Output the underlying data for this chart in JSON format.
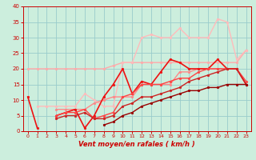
{
  "title": "",
  "xlabel": "Vent moyen/en rafales ( km/h )",
  "ylabel": "",
  "xlim": [
    -0.5,
    23.5
  ],
  "ylim": [
    0,
    40
  ],
  "xticks": [
    0,
    1,
    2,
    3,
    4,
    5,
    6,
    7,
    8,
    9,
    10,
    11,
    12,
    13,
    14,
    15,
    16,
    17,
    18,
    19,
    20,
    21,
    22,
    23
  ],
  "yticks": [
    0,
    5,
    10,
    15,
    20,
    25,
    30,
    35,
    40
  ],
  "bg_color": "#cceedd",
  "grid_color": "#99cccc",
  "lines": [
    {
      "x": [
        0,
        1,
        2,
        3,
        4,
        5,
        6,
        7,
        8,
        9,
        10,
        11,
        12,
        13,
        14,
        15,
        16,
        17,
        18,
        19,
        20,
        21,
        22,
        23
      ],
      "y": [
        20,
        20,
        20,
        20,
        20,
        20,
        20,
        20,
        20,
        21,
        22,
        22,
        22,
        22,
        22,
        22,
        22,
        22,
        22,
        22,
        22,
        22,
        22,
        26
      ],
      "color": "#ffaaaa",
      "lw": 1.0,
      "marker": "o",
      "ms": 2.0
    },
    {
      "x": [
        1,
        2,
        3,
        4,
        5,
        6,
        7,
        8,
        9,
        10,
        11,
        12,
        13,
        14,
        15,
        16,
        17,
        18,
        19,
        20,
        21,
        22,
        23
      ],
      "y": [
        8,
        8,
        8,
        8,
        8,
        12,
        10,
        8,
        8,
        22,
        22,
        30,
        31,
        30,
        30,
        33,
        30,
        30,
        30,
        36,
        35,
        23,
        26
      ],
      "color": "#ffbbbb",
      "lw": 1.0,
      "marker": "o",
      "ms": 2.0
    },
    {
      "x": [
        0,
        1,
        2,
        3,
        4,
        5,
        6,
        7,
        8,
        9,
        10,
        11,
        12,
        13,
        14,
        15,
        16,
        17,
        18,
        19,
        20,
        21,
        22,
        23
      ],
      "y": [
        null,
        null,
        null,
        7,
        7,
        7,
        7,
        9,
        10,
        11,
        11,
        11,
        15,
        15,
        15,
        15,
        19,
        19,
        20,
        20,
        20,
        20,
        20,
        15
      ],
      "color": "#ff8888",
      "lw": 1.0,
      "marker": "o",
      "ms": 2.0
    },
    {
      "x": [
        0,
        1,
        2,
        3,
        4,
        5,
        6,
        7,
        8,
        9,
        10,
        11,
        12,
        13,
        14,
        15,
        16,
        17,
        18,
        19,
        20,
        21,
        22,
        23
      ],
      "y": [
        11,
        1,
        null,
        5,
        6,
        7,
        1,
        5,
        11,
        15,
        20,
        12,
        16,
        15,
        19,
        23,
        22,
        20,
        20,
        20,
        23,
        20,
        20,
        15
      ],
      "color": "#ee1111",
      "lw": 1.2,
      "marker": "o",
      "ms": 2.0
    },
    {
      "x": [
        0,
        1,
        2,
        3,
        4,
        5,
        6,
        7,
        8,
        9,
        10,
        11,
        12,
        13,
        14,
        15,
        16,
        17,
        18,
        19,
        20,
        21,
        22,
        23
      ],
      "y": [
        null,
        null,
        null,
        5,
        6,
        6,
        7,
        4,
        5,
        6,
        11,
        12,
        15,
        15,
        15,
        16,
        17,
        17,
        19,
        20,
        20,
        20,
        20,
        16
      ],
      "color": "#ff4444",
      "lw": 1.0,
      "marker": "o",
      "ms": 2.0
    },
    {
      "x": [
        0,
        1,
        2,
        3,
        4,
        5,
        6,
        7,
        8,
        9,
        10,
        11,
        12,
        13,
        14,
        15,
        16,
        17,
        18,
        19,
        20,
        21,
        22,
        23
      ],
      "y": [
        null,
        null,
        null,
        4,
        5,
        5,
        6,
        4,
        4,
        5,
        8,
        9,
        11,
        11,
        12,
        13,
        14,
        16,
        17,
        18,
        19,
        20,
        20,
        15
      ],
      "color": "#cc2222",
      "lw": 1.0,
      "marker": "o",
      "ms": 2.0
    },
    {
      "x": [
        0,
        1,
        2,
        3,
        4,
        5,
        6,
        7,
        8,
        9,
        10,
        11,
        12,
        13,
        14,
        15,
        16,
        17,
        18,
        19,
        20,
        21,
        22,
        23
      ],
      "y": [
        null,
        null,
        null,
        null,
        null,
        null,
        null,
        null,
        2,
        3,
        5,
        6,
        8,
        9,
        10,
        11,
        12,
        13,
        13,
        14,
        14,
        15,
        15,
        15
      ],
      "color": "#990000",
      "lw": 1.0,
      "marker": "o",
      "ms": 2.0
    }
  ]
}
